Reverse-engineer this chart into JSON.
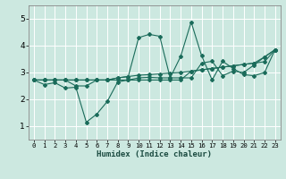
{
  "bg_color": "#cce8e0",
  "grid_color": "#b0d4cc",
  "line_color": "#1a6b5a",
  "xlabel": "Humidex (Indice chaleur)",
  "xlim": [
    -0.5,
    23.5
  ],
  "ylim": [
    0.5,
    5.5
  ],
  "xticks": [
    0,
    1,
    2,
    3,
    4,
    5,
    6,
    7,
    8,
    9,
    10,
    11,
    12,
    13,
    14,
    15,
    16,
    17,
    18,
    19,
    20,
    21,
    22,
    23
  ],
  "yticks": [
    1,
    2,
    3,
    4,
    5
  ],
  "series": [
    [
      2.72,
      2.55,
      2.62,
      2.42,
      2.45,
      1.15,
      1.45,
      1.92,
      2.65,
      2.72,
      2.8,
      2.82,
      2.8,
      2.8,
      3.6,
      4.88,
      3.62,
      2.72,
      3.42,
      3.15,
      2.92,
      2.88,
      3.0,
      3.85
    ],
    [
      2.72,
      2.72,
      2.72,
      2.72,
      2.72,
      2.72,
      2.72,
      2.72,
      2.8,
      2.85,
      2.9,
      2.92,
      2.95,
      2.98,
      3.0,
      3.05,
      3.1,
      3.15,
      3.2,
      3.25,
      3.3,
      3.35,
      3.4,
      3.85
    ],
    [
      2.72,
      2.72,
      2.72,
      2.72,
      2.5,
      2.5,
      2.72,
      2.72,
      2.8,
      2.85,
      4.3,
      4.42,
      4.35,
      2.8,
      2.8,
      2.8,
      3.35,
      3.42,
      2.88,
      3.05,
      3.0,
      3.28,
      3.58,
      3.85
    ],
    [
      2.72,
      2.72,
      2.72,
      2.72,
      2.72,
      2.72,
      2.72,
      2.72,
      2.72,
      2.72,
      2.72,
      2.72,
      2.72,
      2.72,
      2.72,
      3.05,
      3.1,
      3.15,
      3.2,
      3.25,
      3.3,
      3.35,
      3.58,
      3.85
    ]
  ]
}
